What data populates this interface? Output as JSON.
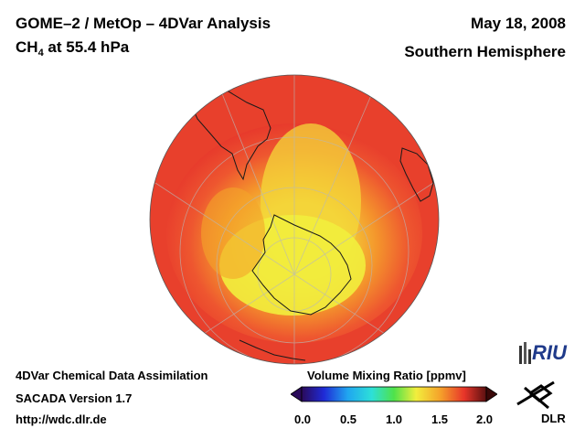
{
  "header": {
    "title_line1": "GOME–2 / MetOp – 4DVar Analysis",
    "species_prefix": "CH",
    "species_subscript": "4",
    "species_suffix": " at 55.4 hPa",
    "date": "May 18, 2008",
    "region": "Southern Hemisphere"
  },
  "footer": {
    "line1": "4DVar Chemical Data Assimilation",
    "line2": "SACADA Version 1.7",
    "line3": "http://wdc.dlr.de"
  },
  "colorbar": {
    "title": "Volume Mixing Ratio [ppmv]",
    "ticks": [
      "0.0",
      "0.5",
      "1.0",
      "1.5",
      "2.0"
    ],
    "range": [
      0.0,
      2.0
    ]
  },
  "logos": {
    "riu": "RIU",
    "dlr": "DLR"
  },
  "colors": {
    "high": "#e8352a",
    "mid": "#f7a21f",
    "low": "#f3ef3a",
    "coast": "#1a1a1a"
  }
}
